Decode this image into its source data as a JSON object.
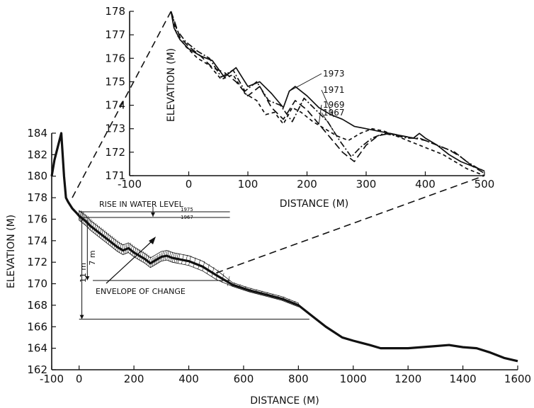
{
  "chart_data": [
    {
      "type": "line",
      "xlabel": "DISTANCE (M)",
      "ylabel": "ELEVATION (M)",
      "xlim": [
        -100,
        1600
      ],
      "ylim": [
        162,
        184
      ],
      "xticks": [
        "-100",
        "0",
        "200",
        "400",
        "600",
        "800",
        "1000",
        "1200",
        "1400",
        "1600"
      ],
      "yticks": [
        "162",
        "164",
        "166",
        "168",
        "170",
        "172",
        "174",
        "176",
        "178",
        "180",
        "182",
        "184"
      ],
      "series": [
        {
          "x": [
            -100,
            -90,
            -75,
            -65,
            -55,
            -48,
            -40,
            -25,
            -10,
            0,
            10,
            25,
            40,
            60,
            80,
            100,
            120,
            140,
            160,
            180,
            200,
            220,
            240,
            260,
            280,
            300,
            320,
            340,
            360,
            400,
            450,
            500,
            560,
            620,
            680,
            740,
            800,
            850,
            900,
            960,
            1000,
            1060,
            1100,
            1150,
            1200,
            1250,
            1300,
            1350,
            1400,
            1450,
            1500,
            1550,
            1600
          ],
          "y": [
            180,
            181.5,
            183,
            184,
            180,
            178,
            177.6,
            177,
            176.6,
            176.3,
            176.1,
            175.8,
            175.4,
            175,
            174.6,
            174.2,
            173.8,
            173.4,
            173.1,
            173.3,
            172.9,
            172.6,
            172.3,
            171.9,
            172.2,
            172.5,
            172.6,
            172.4,
            172.3,
            172.1,
            171.6,
            170.8,
            169.9,
            169.4,
            169,
            168.6,
            168,
            167,
            166,
            165,
            164.7,
            164.3,
            164,
            164,
            164,
            164.1,
            164.2,
            164.3,
            164.1,
            164,
            163.6,
            163.1,
            162.8
          ]
        }
      ],
      "annotations": {
        "rise_in_water_level": "RISE IN WATER LEVEL",
        "year_top": "1975",
        "year_bottom": "1967",
        "range_7m": "7 m",
        "range_11m": "11 m",
        "envelope": "ENVELOPE OF CHANGE"
      }
    },
    {
      "type": "line",
      "xlabel": "DISTANCE (M)",
      "ylabel": "ELEVATION (M)",
      "xlim": [
        -100,
        500
      ],
      "ylim": [
        171,
        178
      ],
      "xticks": [
        "-100",
        "0",
        "100",
        "200",
        "300",
        "400",
        "500"
      ],
      "yticks": [
        "171",
        "172",
        "173",
        "174",
        "175",
        "176",
        "177",
        "178"
      ],
      "series": [
        {
          "name": "1973",
          "style": "solid",
          "x": [
            -30,
            -25,
            -15,
            0,
            20,
            40,
            60,
            80,
            100,
            120,
            140,
            160,
            170,
            180,
            190,
            200,
            220,
            240,
            260,
            280,
            300,
            320,
            340,
            360,
            380,
            390,
            400,
            420,
            440,
            460,
            480,
            500
          ],
          "y": [
            178,
            177.3,
            176.8,
            176.4,
            176.1,
            175.9,
            175.2,
            175.6,
            174.8,
            175,
            174.5,
            173.9,
            174.6,
            174.8,
            174.6,
            174.4,
            173.9,
            173.6,
            173.4,
            173.1,
            173,
            172.9,
            172.8,
            172.7,
            172.6,
            172.8,
            172.6,
            172.3,
            171.9,
            171.6,
            171.4,
            171.2
          ]
        },
        {
          "name": "1971",
          "style": "dashdot",
          "x": [
            -30,
            -20,
            -5,
            15,
            35,
            55,
            75,
            95,
            115,
            135,
            155,
            175,
            195,
            215,
            235,
            255,
            275,
            290,
            310,
            330,
            350,
            370,
            390,
            410,
            430,
            450,
            470,
            490,
            500
          ],
          "y": [
            178,
            177.2,
            176.7,
            176.3,
            176,
            175.2,
            175.5,
            174.6,
            175,
            174.2,
            174,
            173.3,
            174.3,
            173.8,
            173.3,
            172.5,
            171.8,
            172.2,
            172.6,
            172.8,
            172.7,
            172.6,
            172.6,
            172.4,
            172.2,
            172,
            171.6,
            171.3,
            171.2
          ]
        },
        {
          "name": "1969",
          "style": "longdash",
          "x": [
            -30,
            -15,
            0,
            20,
            40,
            60,
            80,
            100,
            120,
            140,
            160,
            180,
            200,
            220,
            240,
            260,
            280,
            300,
            320,
            340,
            360,
            380,
            400,
            420,
            440,
            460,
            480,
            500
          ],
          "y": [
            178,
            176.9,
            176.5,
            176.1,
            175.6,
            175.4,
            175,
            174.4,
            174.8,
            173.9,
            173.4,
            174.2,
            173.8,
            173.2,
            172.6,
            172,
            171.6,
            172.3,
            172.7,
            172.8,
            172.7,
            172.6,
            172.5,
            172.3,
            172.1,
            171.8,
            171.4,
            171.1
          ]
        },
        {
          "name": "1967",
          "style": "shortdash",
          "x": [
            -30,
            -20,
            -5,
            15,
            35,
            55,
            75,
            95,
            115,
            130,
            145,
            160,
            175,
            190,
            210,
            230,
            250,
            270,
            290,
            310,
            330,
            350,
            370,
            390,
            410,
            430,
            450,
            470,
            490,
            500
          ],
          "y": [
            178,
            177,
            176.5,
            176,
            175.7,
            175.1,
            175.3,
            174.5,
            174.2,
            173.6,
            173.7,
            173.2,
            173.9,
            173.7,
            173.3,
            173,
            172.7,
            172.5,
            172.8,
            173,
            172.9,
            172.7,
            172.5,
            172.3,
            172.1,
            171.9,
            171.6,
            171.3,
            171.1,
            171
          ]
        }
      ]
    }
  ]
}
